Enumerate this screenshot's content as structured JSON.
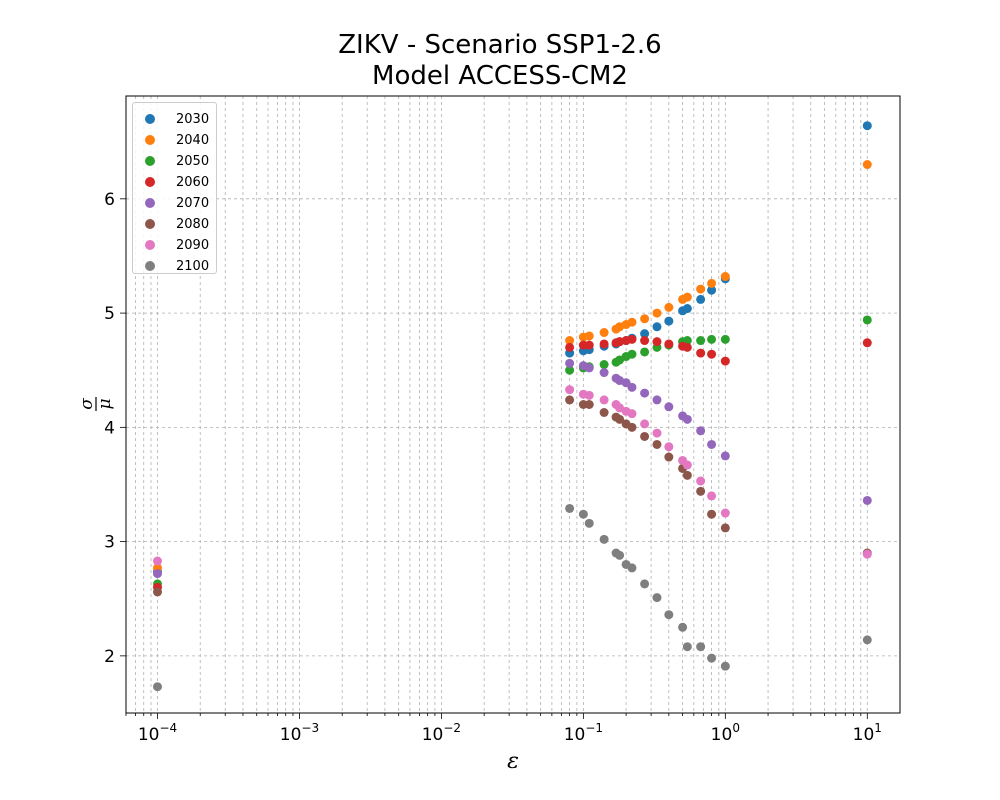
{
  "chart_data": {
    "type": "scatter",
    "title": "ZIKV - Scenario SSP1-2.6",
    "subtitle": "Model ACCESS-CM2",
    "xlabel": "ε",
    "ylabel": "σ / μ",
    "xscale": "log",
    "xlim": [
      6e-05,
      17
    ],
    "ylim": [
      1.5,
      6.9
    ],
    "x_ticks": [
      {
        "value": 0.0001,
        "base": "10",
        "exp": "−4"
      },
      {
        "value": 0.001,
        "base": "10",
        "exp": "−3"
      },
      {
        "value": 0.01,
        "base": "10",
        "exp": "−2"
      },
      {
        "value": 0.1,
        "base": "10",
        "exp": "−1"
      },
      {
        "value": 1,
        "base": "10",
        "exp": "0"
      },
      {
        "value": 10,
        "base": "10",
        "exp": "1"
      }
    ],
    "y_ticks": [
      2,
      3,
      4,
      5,
      6
    ],
    "grid": "both-major-minor-dashed",
    "legend_position": "top-left",
    "x": [
      0.0001,
      0.08,
      0.1,
      0.11,
      0.14,
      0.17,
      0.18,
      0.2,
      0.22,
      0.27,
      0.33,
      0.4,
      0.5,
      0.54,
      0.67,
      0.8,
      1.0,
      10
    ],
    "series": [
      {
        "name": "2030",
        "color": "#1f77b4",
        "values": [
          2.74,
          4.65,
          4.67,
          4.68,
          4.71,
          4.73,
          4.75,
          4.76,
          4.78,
          4.82,
          4.88,
          4.93,
          5.02,
          5.04,
          5.12,
          5.2,
          5.3,
          6.64
        ]
      },
      {
        "name": "2040",
        "color": "#ff7f0e",
        "values": [
          2.77,
          4.76,
          4.79,
          4.8,
          4.83,
          4.86,
          4.88,
          4.9,
          4.92,
          4.95,
          5.0,
          5.05,
          5.12,
          5.14,
          5.21,
          5.26,
          5.32,
          6.3
        ]
      },
      {
        "name": "2050",
        "color": "#2ca02c",
        "values": [
          2.63,
          4.5,
          4.52,
          4.53,
          4.55,
          4.57,
          4.59,
          4.62,
          4.64,
          4.66,
          4.7,
          4.72,
          4.75,
          4.76,
          4.76,
          4.77,
          4.77,
          4.94
        ]
      },
      {
        "name": "2060",
        "color": "#d62728",
        "values": [
          2.6,
          4.7,
          4.72,
          4.72,
          4.73,
          4.74,
          4.75,
          4.76,
          4.77,
          4.76,
          4.75,
          4.73,
          4.71,
          4.7,
          4.65,
          4.64,
          4.58,
          4.74
        ]
      },
      {
        "name": "2070",
        "color": "#9467bd",
        "values": [
          2.72,
          4.56,
          4.54,
          4.52,
          4.48,
          4.43,
          4.41,
          4.39,
          4.35,
          4.3,
          4.24,
          4.18,
          4.1,
          4.07,
          3.97,
          3.85,
          3.75,
          3.36
        ]
      },
      {
        "name": "2080",
        "color": "#8c564b",
        "values": [
          2.56,
          4.24,
          4.2,
          4.2,
          4.13,
          4.09,
          4.07,
          4.03,
          4.0,
          3.92,
          3.85,
          3.74,
          3.64,
          3.58,
          3.44,
          3.24,
          3.12,
          2.9
        ]
      },
      {
        "name": "2090",
        "color": "#e377c2",
        "values": [
          2.83,
          4.33,
          4.29,
          4.28,
          4.24,
          4.2,
          4.17,
          4.14,
          4.12,
          4.03,
          3.95,
          3.83,
          3.71,
          3.67,
          3.53,
          3.4,
          3.25,
          2.89
        ]
      },
      {
        "name": "2100",
        "color": "#7f7f7f",
        "values": [
          1.73,
          3.29,
          3.24,
          3.16,
          3.02,
          2.9,
          2.88,
          2.8,
          2.77,
          2.63,
          2.51,
          2.36,
          2.25,
          2.08,
          2.08,
          1.98,
          1.91,
          2.14
        ]
      }
    ]
  }
}
